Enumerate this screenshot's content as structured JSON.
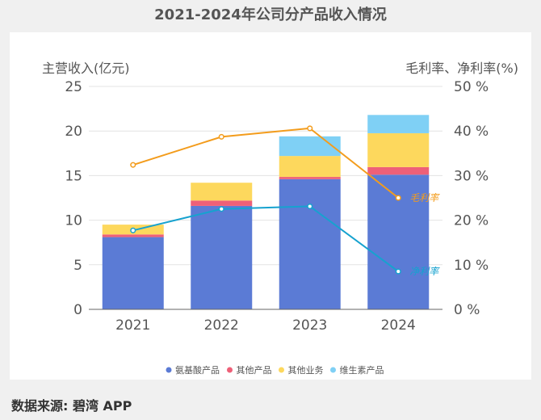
{
  "chart_data": {
    "type": "bar+line",
    "title": "2021-2024年公司分产品收入情况",
    "categories": [
      "2021",
      "2022",
      "2023",
      "2024"
    ],
    "ylabel": "主营收入(亿元)",
    "y2label": "毛利率、净利率(%)",
    "ylim": [
      0,
      25
    ],
    "y2lim": [
      0,
      50
    ],
    "yticks": [
      "0",
      "5",
      "10",
      "15",
      "20",
      "25"
    ],
    "y2ticks": [
      "0 %",
      "10 %",
      "20 %",
      "30 %",
      "40 %",
      "50 %"
    ],
    "grid": true,
    "legend_position": "bottom",
    "stacked": true,
    "series": [
      {
        "name": "氨基酸产品",
        "type": "bar",
        "color": "#5b7bd5",
        "values": [
          8.1,
          11.6,
          14.6,
          15.1
        ]
      },
      {
        "name": "其他产品",
        "type": "bar",
        "color": "#ee6078",
        "values": [
          0.3,
          0.6,
          0.25,
          0.85
        ]
      },
      {
        "name": "其他业务",
        "type": "bar",
        "color": "#fdd85d",
        "values": [
          1.1,
          2.0,
          2.35,
          3.8
        ]
      },
      {
        "name": "维生素产品",
        "type": "bar",
        "color": "#7fd0f5",
        "values": [
          0,
          0,
          2.2,
          2.05
        ]
      },
      {
        "name": "毛利率",
        "type": "line",
        "axis": "right",
        "color": "#f39c1c",
        "values": [
          32.4,
          38.7,
          40.6,
          25.0
        ]
      },
      {
        "name": "净利率",
        "type": "line",
        "axis": "right",
        "color": "#16a2cf",
        "values": [
          17.7,
          22.5,
          23.1,
          8.5
        ]
      }
    ]
  },
  "source": "数据来源: 碧湾 APP"
}
